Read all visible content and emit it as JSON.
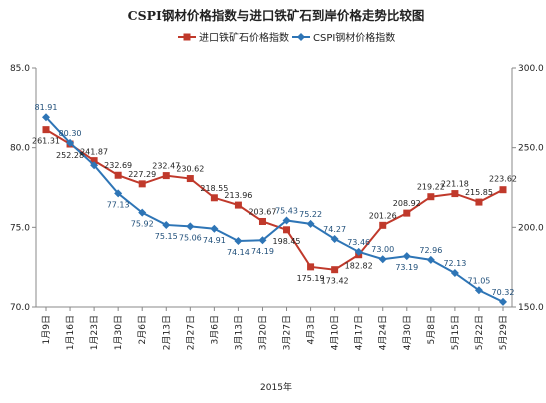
{
  "chart_data": {
    "type": "line",
    "title": "CSPI钢材价格指数与进口铁矿石到岸价格走势比较图",
    "xlabel": "2015年",
    "categories": [
      "1月9日",
      "1月16日",
      "1月23日",
      "1月30日",
      "2月6日",
      "2月13日",
      "2月27日",
      "3月6日",
      "3月13日",
      "3月20日",
      "3月27日",
      "4月3日",
      "4月10日",
      "4月17日",
      "4月24日",
      "4月30日",
      "5月8日",
      "5月15日",
      "5月22日",
      "5月29日"
    ],
    "y_left": {
      "range": [
        70,
        85
      ],
      "ticks": [
        "70.0",
        "75.0",
        "80.0",
        "85.0"
      ]
    },
    "y_right": {
      "range": [
        150,
        300
      ],
      "ticks": [
        "150.0",
        "200.0",
        "250.0",
        "300.0"
      ]
    },
    "legend_placement": "top-center",
    "grid": false,
    "series": [
      {
        "name": "进口铁矿石价格指数",
        "axis": "right",
        "color": "#c0392b",
        "marker": "square",
        "values": [
          261.31,
          252.28,
          241.87,
          232.69,
          227.29,
          232.47,
          230.62,
          218.55,
          213.96,
          203.67,
          198.45,
          175.19,
          173.42,
          182.82,
          201.26,
          208.92,
          219.22,
          221.18,
          215.85,
          223.62
        ],
        "labels": [
          "261.31",
          "252.28",
          "241.87",
          "232.69",
          "227.29",
          "232.47",
          "230.62",
          "218.55",
          "213.96",
          "203.67",
          "198.45",
          "175.19",
          "173.42",
          "182.82",
          "201.26",
          "208.92",
          "219.22",
          "221.18",
          "215.85",
          "223.62"
        ]
      },
      {
        "name": "CSPI钢材价格指数",
        "axis": "left",
        "color": "#2e75b6",
        "marker": "diamond",
        "values": [
          81.91,
          80.3,
          78.9,
          77.13,
          75.92,
          75.15,
          75.06,
          74.91,
          74.14,
          74.19,
          75.43,
          75.22,
          74.27,
          73.46,
          73.0,
          73.19,
          72.96,
          72.13,
          71.05,
          70.32
        ],
        "labels": [
          "81.91",
          "80.30",
          "",
          "77.13",
          "75.92",
          "75.15",
          "75.06",
          "74.91",
          "74.14",
          "74.19",
          "75.43",
          "75.22",
          "74.27",
          "73.46",
          "73.00",
          "73.19",
          "72.96",
          "72.13",
          "71.05",
          "70.32"
        ]
      }
    ]
  }
}
